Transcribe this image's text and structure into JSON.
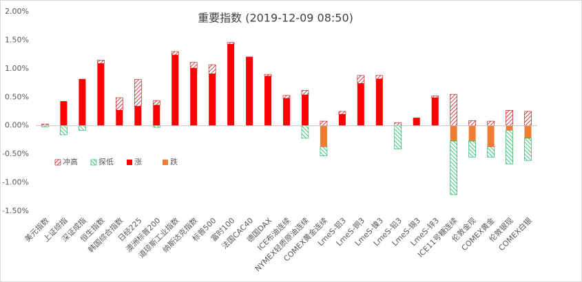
{
  "chart_data": {
    "type": "bar",
    "stacked": true,
    "title": "重要指数 (2019-12-09 08:50)",
    "categories": [
      "美元指数",
      "上证综指",
      "深证成指",
      "恒生指数",
      "韩国综合指数",
      "日经225",
      "澳洲标普200",
      "道琼斯工业指数",
      "纳斯达克指数",
      "标普500",
      "富时100",
      "法国CAC40",
      "德国DAX",
      "ICE布油连续",
      "NYMEX轻质原油连续",
      "COMEX黄金连续",
      "LmeS-铝3",
      "LmeS-铜3",
      "LmeS-镍3",
      "LmeS-铅3",
      "LmeS-锡3",
      "LmeS-锌3",
      "ICE11号糖连续",
      "伦敦金现",
      "COMEX黄金",
      "伦敦银现",
      "COMEX白银"
    ],
    "series": [
      {
        "name": "冲高",
        "color": "#c00000",
        "pattern": "hatch",
        "values": [
          0.03,
          0,
          0,
          0.06,
          0.22,
          0.47,
          0.08,
          0.06,
          0.1,
          0.16,
          0.03,
          0,
          0.03,
          0.05,
          0.08,
          0.08,
          0.05,
          0.14,
          0.06,
          0.05,
          0,
          0.03,
          0.55,
          0.09,
          0.08,
          0.27,
          0.25
        ]
      },
      {
        "name": "探低",
        "color": "#00b050",
        "pattern": "hatch",
        "values": [
          -0.02,
          -0.16,
          -0.08,
          0,
          0,
          0,
          -0.03,
          0,
          0,
          0,
          0,
          0,
          0,
          0,
          -0.22,
          -0.16,
          0,
          0,
          0,
          -0.41,
          0,
          0,
          -0.94,
          -0.28,
          -0.18,
          -0.59,
          -0.39
        ]
      },
      {
        "name": "涨",
        "color": "#ff0000",
        "pattern": "solid",
        "values": [
          0,
          0.43,
          0.82,
          1.09,
          0.27,
          0.34,
          0.36,
          1.24,
          1.01,
          0.91,
          1.43,
          1.21,
          0.87,
          0.48,
          0.54,
          0,
          0.2,
          0.74,
          0.82,
          0,
          0.14,
          0.49,
          0,
          0,
          0,
          0,
          0
        ]
      },
      {
        "name": "跌",
        "color": "#ed7d31",
        "pattern": "solid",
        "values": [
          0,
          0,
          0,
          0,
          0,
          0,
          0,
          0,
          0,
          0,
          0,
          0,
          0,
          0,
          0,
          -0.37,
          0,
          0,
          0,
          0,
          0,
          0,
          -0.27,
          -0.27,
          -0.37,
          -0.08,
          -0.22
        ]
      }
    ],
    "ylim": [
      -1.5,
      2
    ],
    "yticks": [
      {
        "value": -1.5,
        "label": "-1.50%"
      },
      {
        "value": -1,
        "label": "-1.00%"
      },
      {
        "value": -0.5,
        "label": "-0.50%"
      },
      {
        "value": 0,
        "label": "0.00%"
      },
      {
        "value": 0.5,
        "label": "0.50%"
      },
      {
        "value": 1,
        "label": "1.00%"
      },
      {
        "value": 1.5,
        "label": "1.50%"
      },
      {
        "value": 2,
        "label": "2.00%"
      }
    ],
    "grid": false,
    "legend": "lower-left"
  }
}
